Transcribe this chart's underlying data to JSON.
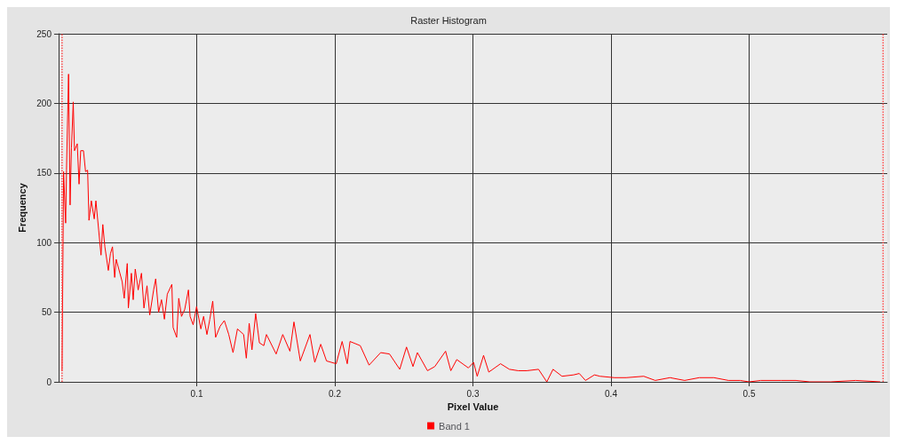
{
  "chart_data": {
    "type": "line",
    "title": "Raster Histogram",
    "xlabel": "Pixel Value",
    "ylabel": "Frequency",
    "xlim": [
      0,
      0.6
    ],
    "ylim": [
      0,
      250
    ],
    "xticks": [
      0.1,
      0.2,
      0.3,
      0.4,
      0.5
    ],
    "yticks": [
      0,
      50,
      100,
      150,
      200,
      250
    ],
    "grid": true,
    "legend": "bottom",
    "marker": "none",
    "line_style": "solid",
    "ref_lines": [
      {
        "axis": "x",
        "value": 0.0025,
        "color": "#ff4d4d",
        "line_style": "dotted"
      },
      {
        "axis": "x",
        "value": 0.597,
        "color": "#ff4d4d",
        "line_style": "dotted"
      }
    ],
    "series": [
      {
        "name": "Band 1",
        "color": "#ff0000",
        "x": [
          0.0025,
          0.0036,
          0.0051,
          0.0057,
          0.0072,
          0.0083,
          0.0093,
          0.0106,
          0.0115,
          0.0135,
          0.0148,
          0.016,
          0.018,
          0.0195,
          0.021,
          0.022,
          0.0237,
          0.0258,
          0.027,
          0.029,
          0.0307,
          0.032,
          0.0335,
          0.036,
          0.0375,
          0.039,
          0.0406,
          0.0417,
          0.046,
          0.0475,
          0.0497,
          0.0505,
          0.0527,
          0.054,
          0.0555,
          0.0576,
          0.06,
          0.0618,
          0.064,
          0.066,
          0.0688,
          0.0703,
          0.0724,
          0.0745,
          0.0766,
          0.0787,
          0.082,
          0.0829,
          0.0855,
          0.087,
          0.089,
          0.0913,
          0.094,
          0.0952,
          0.0974,
          0.0999,
          0.103,
          0.105,
          0.1074,
          0.1095,
          0.1116,
          0.1137,
          0.117,
          0.12,
          0.1232,
          0.1263,
          0.1295,
          0.134,
          0.1359,
          0.138,
          0.14,
          0.1427,
          0.1454,
          0.1486,
          0.1505,
          0.1575,
          0.1623,
          0.1675,
          0.1704,
          0.175,
          0.182,
          0.1855,
          0.1898,
          0.194,
          0.201,
          0.2053,
          0.209,
          0.211,
          0.2184,
          0.2248,
          0.2332,
          0.2396,
          0.247,
          0.2519,
          0.2566,
          0.2598,
          0.2671,
          0.2724,
          0.2802,
          0.284,
          0.2883,
          0.2967,
          0.3005,
          0.3031,
          0.3077,
          0.3115,
          0.32,
          0.3264,
          0.3328,
          0.339,
          0.3475,
          0.3535,
          0.358,
          0.3645,
          0.3729,
          0.377,
          0.3815,
          0.388,
          0.392,
          0.4025,
          0.411,
          0.4237,
          0.432,
          0.4427,
          0.4533,
          0.4639,
          0.4745,
          0.485,
          0.4935,
          0.5,
          0.5084,
          0.523,
          0.5338,
          0.544,
          0.559,
          0.5771,
          0.595
        ],
        "values": [
          8,
          151,
          114,
          152,
          221,
          127,
          168,
          201,
          166,
          171,
          142,
          166,
          166,
          151,
          152,
          116,
          130,
          117,
          130,
          109,
          91,
          113,
          97,
          80,
          92,
          97,
          75,
          88,
          72,
          60,
          85,
          53,
          78,
          59,
          81,
          66,
          78,
          53,
          69,
          48,
          66,
          74,
          50,
          59,
          45,
          63,
          70,
          39,
          32,
          60,
          47,
          52,
          66,
          47,
          41,
          54,
          38,
          47,
          34,
          45,
          58,
          32,
          40,
          44,
          34,
          21,
          38,
          34,
          17,
          42,
          23,
          49,
          28,
          26,
          34,
          20,
          34,
          22,
          43,
          15,
          34,
          14,
          27,
          15,
          13,
          29,
          13,
          29,
          26,
          12,
          21,
          20,
          9,
          25,
          11,
          21,
          8,
          11,
          22,
          8,
          16,
          10,
          14,
          4,
          19,
          7,
          13,
          9,
          8,
          8,
          9,
          0,
          9,
          4,
          5,
          6,
          1,
          5,
          4,
          3,
          3,
          4,
          1,
          3,
          1,
          3,
          3,
          1,
          1,
          0,
          1,
          1,
          1,
          0,
          0,
          1,
          0
        ]
      }
    ]
  }
}
